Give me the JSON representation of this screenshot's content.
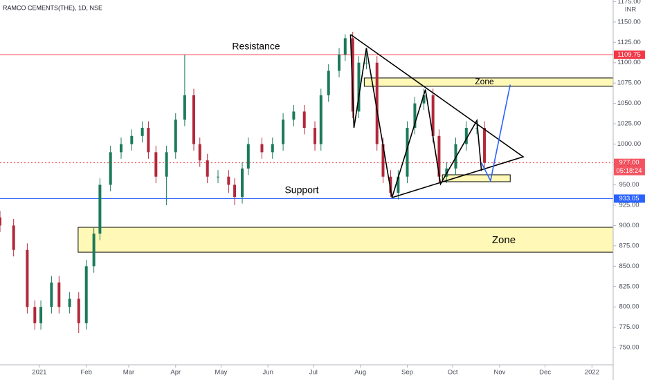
{
  "chart_data": {
    "type": "candlestick",
    "title": "RAMCO CEMENTS(THE), 1D, NSE",
    "currency": "INR",
    "up_color": "#1b7a5a",
    "down_color": "#b2283a",
    "grid": false,
    "x": [
      -26,
      -17,
      -8,
      -3,
      1,
      8,
      13,
      20,
      26,
      31,
      36,
      40,
      47,
      54,
      61,
      68,
      72,
      77,
      84,
      90,
      96,
      102,
      106,
      111,
      118,
      125,
      129,
      134,
      138,
      147,
      154,
      161,
      168,
      175,
      182,
      186,
      191,
      198,
      202,
      207,
      211,
      216,
      223,
      227,
      232,
      237,
      243,
      248,
      254,
      260,
      264,
      269,
      275,
      282,
      289,
      294
    ],
    "open": [
      910,
      900,
      870,
      800,
      780,
      800,
      830,
      800,
      810,
      780,
      850,
      890,
      950,
      990,
      1000,
      1010,
      1020,
      990,
      960,
      990,
      1030,
      1060,
      1000,
      980,
      960,
      960,
      950,
      935,
      970,
      1000,
      990,
      1000,
      1030,
      1040,
      1020,
      1000,
      1060,
      1090,
      1110,
      1130,
      1040,
      1100,
      1100,
      1000,
      960,
      940,
      960,
      1020,
      1050,
      1060,
      1010,
      960,
      970,
      1000,
      1020,
      1020
    ],
    "high": [
      918,
      908,
      878,
      808,
      808,
      838,
      838,
      818,
      818,
      858,
      898,
      958,
      998,
      1008,
      1018,
      1028,
      1028,
      998,
      998,
      1038,
      1110,
      1068,
      1008,
      988,
      968,
      968,
      958,
      978,
      1008,
      1008,
      1008,
      1038,
      1048,
      1048,
      1028,
      1068,
      1098,
      1118,
      1135,
      1138,
      1108,
      1118,
      1108,
      1008,
      968,
      968,
      1028,
      1058,
      1068,
      1068,
      1018,
      978,
      1008,
      1028,
      1028,
      1028
    ],
    "low": [
      892,
      862,
      792,
      772,
      772,
      792,
      792,
      792,
      768,
      772,
      842,
      882,
      942,
      982,
      992,
      1002,
      982,
      952,
      925,
      982,
      1022,
      992,
      972,
      952,
      952,
      940,
      925,
      927,
      962,
      982,
      982,
      992,
      1022,
      1012,
      992,
      992,
      1052,
      1082,
      1102,
      1032,
      1032,
      1092,
      992,
      952,
      935,
      932,
      952,
      1012,
      1042,
      1002,
      952,
      952,
      962,
      992,
      1012,
      969
    ],
    "close": [
      900,
      870,
      800,
      780,
      800,
      830,
      800,
      810,
      780,
      850,
      890,
      950,
      990,
      1000,
      1010,
      1020,
      990,
      960,
      990,
      1030,
      1060,
      1000,
      980,
      960,
      960,
      950,
      935,
      970,
      1000,
      990,
      1000,
      1030,
      1040,
      1020,
      1000,
      1060,
      1090,
      1110,
      1130,
      1040,
      1100,
      1100,
      1000,
      960,
      940,
      960,
      1020,
      1050,
      1060,
      1010,
      960,
      970,
      1000,
      1020,
      1020,
      977
    ],
    "xlim": [
      -26,
      379
    ],
    "ylim": [
      734,
      1177
    ],
    "xticks": [
      {
        "value": 0,
        "label": "2021"
      },
      {
        "value": 31,
        "label": "Feb"
      },
      {
        "value": 59,
        "label": "Mar"
      },
      {
        "value": 90,
        "label": "Apr"
      },
      {
        "value": 120,
        "label": "May"
      },
      {
        "value": 151,
        "label": "Jun"
      },
      {
        "value": 181,
        "label": "Jul"
      },
      {
        "value": 212,
        "label": "Aug"
      },
      {
        "value": 243,
        "label": "Sep"
      },
      {
        "value": 273,
        "label": "Oct"
      },
      {
        "value": 304,
        "label": "Nov"
      },
      {
        "value": 334,
        "label": "Dec"
      },
      {
        "value": 365,
        "label": "2022"
      }
    ],
    "yticks": [
      {
        "value": 750,
        "label": "750.00"
      },
      {
        "value": 775,
        "label": "775.00"
      },
      {
        "value": 800,
        "label": "800.00"
      },
      {
        "value": 825,
        "label": "825.00"
      },
      {
        "value": 850,
        "label": "850.00"
      },
      {
        "value": 875,
        "label": "875.00"
      },
      {
        "value": 900,
        "label": "900.00"
      },
      {
        "value": 925,
        "label": "925.00"
      },
      {
        "value": 950,
        "label": "950.00"
      },
      {
        "value": 975,
        "label": "975.00"
      },
      {
        "value": 1000,
        "label": "1000.00"
      },
      {
        "value": 1025,
        "label": "1025.00"
      },
      {
        "value": 1050,
        "label": "1050.00"
      },
      {
        "value": 1075,
        "label": "1075.00"
      },
      {
        "value": 1100,
        "label": "1100.00"
      },
      {
        "value": 1125,
        "label": "1125.00"
      },
      {
        "value": 1150,
        "label": "1150.00"
      },
      {
        "value": 1175,
        "label": "1175.00"
      }
    ],
    "price_lines": [
      {
        "value": 1109.75,
        "label": "1109.75",
        "color": "#f23645",
        "style": "solid"
      },
      {
        "value": 933.05,
        "label": "933.05",
        "color": "#2962ff",
        "style": "solid"
      },
      {
        "value": 977,
        "label": "977.00",
        "color": "#f23645",
        "style": "dotted"
      }
    ],
    "countdown": "05:18:24",
    "annotations": [
      "Resistance",
      "Support"
    ],
    "zones": [
      {
        "x": [
          214.6,
          379
        ],
        "y": [
          1071,
          1081.2
        ],
        "label": "Zone"
      },
      {
        "x": [
          25.6,
          379
        ],
        "y": [
          867.2,
          897.8
        ],
        "label": "Zone"
      },
      {
        "x": [
          266.2,
          311
        ],
        "y": [
          953.8,
          962.3
        ]
      }
    ],
    "drawings": [
      {
        "color": "#000000",
        "points_x": [
          205.5,
          319.6,
          232.9
        ],
        "points_y": [
          1134.7,
          984.4,
          934.3
        ]
      },
      {
        "color": "#000000",
        "points_x": [
          205.5,
          207.8,
          216,
          232.9,
          255,
          265,
          289,
          292
        ],
        "points_y": [
          1134.7,
          1020,
          1118,
          934.3,
          1067,
          951,
          1029,
          967
        ]
      },
      {
        "color": "#2962ff",
        "points_x": [
          292,
          298,
          311
        ],
        "points_y": [
          977,
          955,
          1073
        ]
      }
    ]
  }
}
